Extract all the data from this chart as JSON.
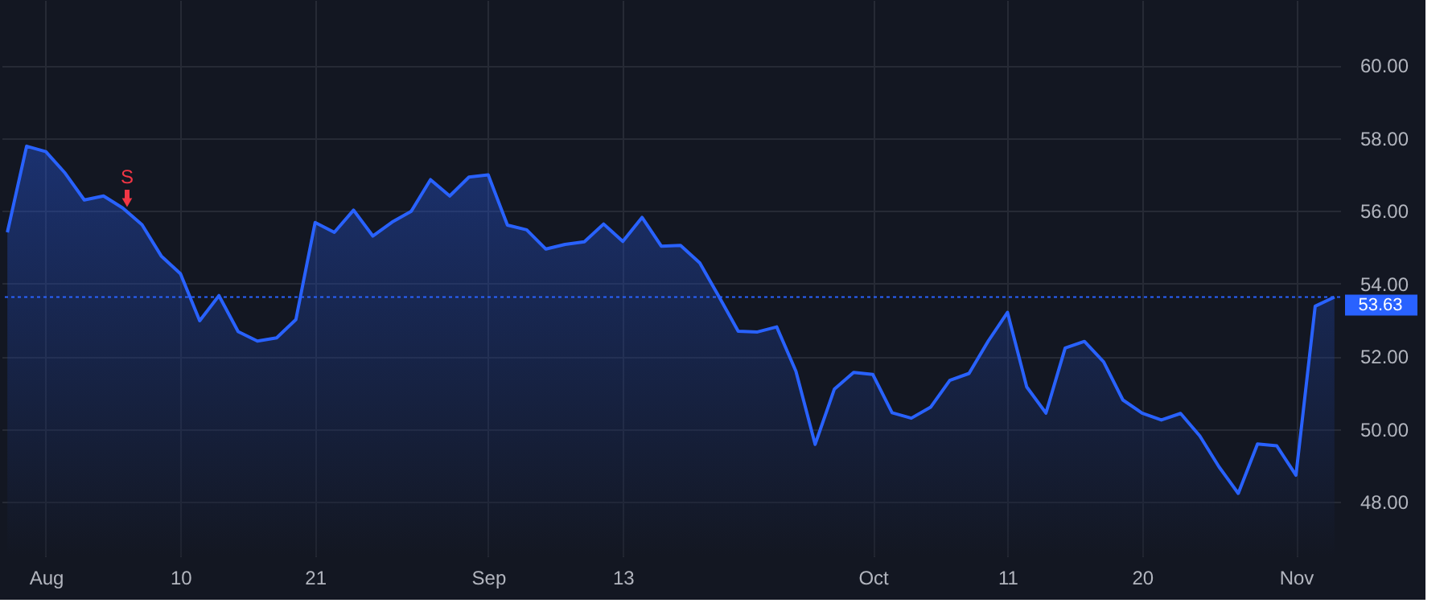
{
  "chart_data": {
    "type": "area",
    "categories": [
      null,
      null,
      "Aug",
      null,
      null,
      null,
      null,
      null,
      null,
      "10",
      null,
      null,
      null,
      null,
      null,
      null,
      "21",
      null,
      null,
      null,
      null,
      null,
      null,
      null,
      null,
      "Sep",
      null,
      null,
      null,
      null,
      null,
      null,
      "13",
      null,
      null,
      null,
      null,
      null,
      null,
      null,
      null,
      null,
      null,
      null,
      null,
      "Oct",
      null,
      null,
      null,
      null,
      null,
      null,
      "11",
      null,
      null,
      null,
      null,
      null,
      null,
      "20",
      null,
      null,
      null,
      null,
      null,
      null,
      null,
      "Nov",
      null,
      null
    ],
    "series": [
      {
        "color": "#2962ff",
        "values": [
          55.41,
          57.78,
          57.63,
          57.04,
          56.3,
          56.41,
          56.08,
          55.62,
          54.76,
          54.27,
          52.98,
          53.67,
          52.68,
          52.42,
          52.51,
          53.01,
          55.68,
          55.41,
          56.02,
          55.31,
          55.69,
          55.99,
          56.86,
          56.41,
          56.93,
          56.99,
          55.61,
          55.48,
          54.95,
          55.08,
          55.15,
          55.64,
          55.16,
          55.82,
          55.03,
          55.05,
          54.57,
          53.64,
          52.69,
          52.67,
          52.81,
          51.59,
          49.58,
          51.1,
          51.56,
          51.5,
          50.45,
          50.3,
          50.6,
          51.34,
          51.53,
          52.42,
          53.21,
          51.16,
          50.44,
          52.23,
          52.41,
          51.85,
          50.8,
          50.44,
          50.25,
          50.43,
          49.81,
          48.96,
          48.23,
          49.59,
          49.54,
          48.73,
          53.38,
          53.63
        ]
      }
    ],
    "ylim": [
      46.5,
      61.8
    ],
    "yticks": [
      {
        "value": 48,
        "label": "48.00"
      },
      {
        "value": 50,
        "label": "50.00"
      },
      {
        "value": 52,
        "label": "52.00"
      },
      {
        "value": 54,
        "label": "54.00"
      },
      {
        "value": 56,
        "label": "56.00"
      },
      {
        "value": 58,
        "label": "58.00"
      },
      {
        "value": 60,
        "label": "60.00"
      }
    ],
    "ref_lines": [
      {
        "axis": "y",
        "value": 53.63,
        "label": "53.63",
        "color": "#2962ff",
        "line_style": "dotted"
      }
    ],
    "annotations": [
      "S"
    ],
    "grid": true,
    "line_style": "solid"
  }
}
